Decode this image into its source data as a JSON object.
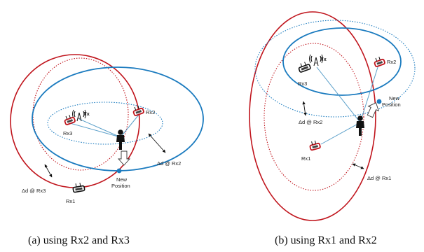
{
  "panel_a": {
    "labels": {
      "tx": "Tx",
      "rx1": "Rx1",
      "rx2": "Rx2",
      "rx3": "Rx3",
      "new_position_line1": "New",
      "new_position_line2": "Position",
      "delta_rx2": "Δd @ Rx2",
      "delta_rx3": "Δd @ Rx3"
    },
    "caption": "(a) using Rx2 and Rx3"
  },
  "panel_b": {
    "labels": {
      "tx": "Tx",
      "rx1": "Rx1",
      "rx2": "Rx2",
      "rx3": "Rx3",
      "new_position_line1": "New",
      "new_position_line2": "Position",
      "delta_rx2": "Δd @ Rx2",
      "delta_rx1": "Δd @ Rx1"
    },
    "caption": "(b) using Rx1 and Rx2"
  },
  "colors": {
    "red_ellipse": "#c0141c",
    "blue_ellipse": "#1b7bbf",
    "link": "#5a9fc9",
    "position_dot": "#1b7bbf"
  },
  "icons": [
    "antenna-tower-icon",
    "receiver-node-icon",
    "person-icon",
    "movement-arrow-icon"
  ]
}
